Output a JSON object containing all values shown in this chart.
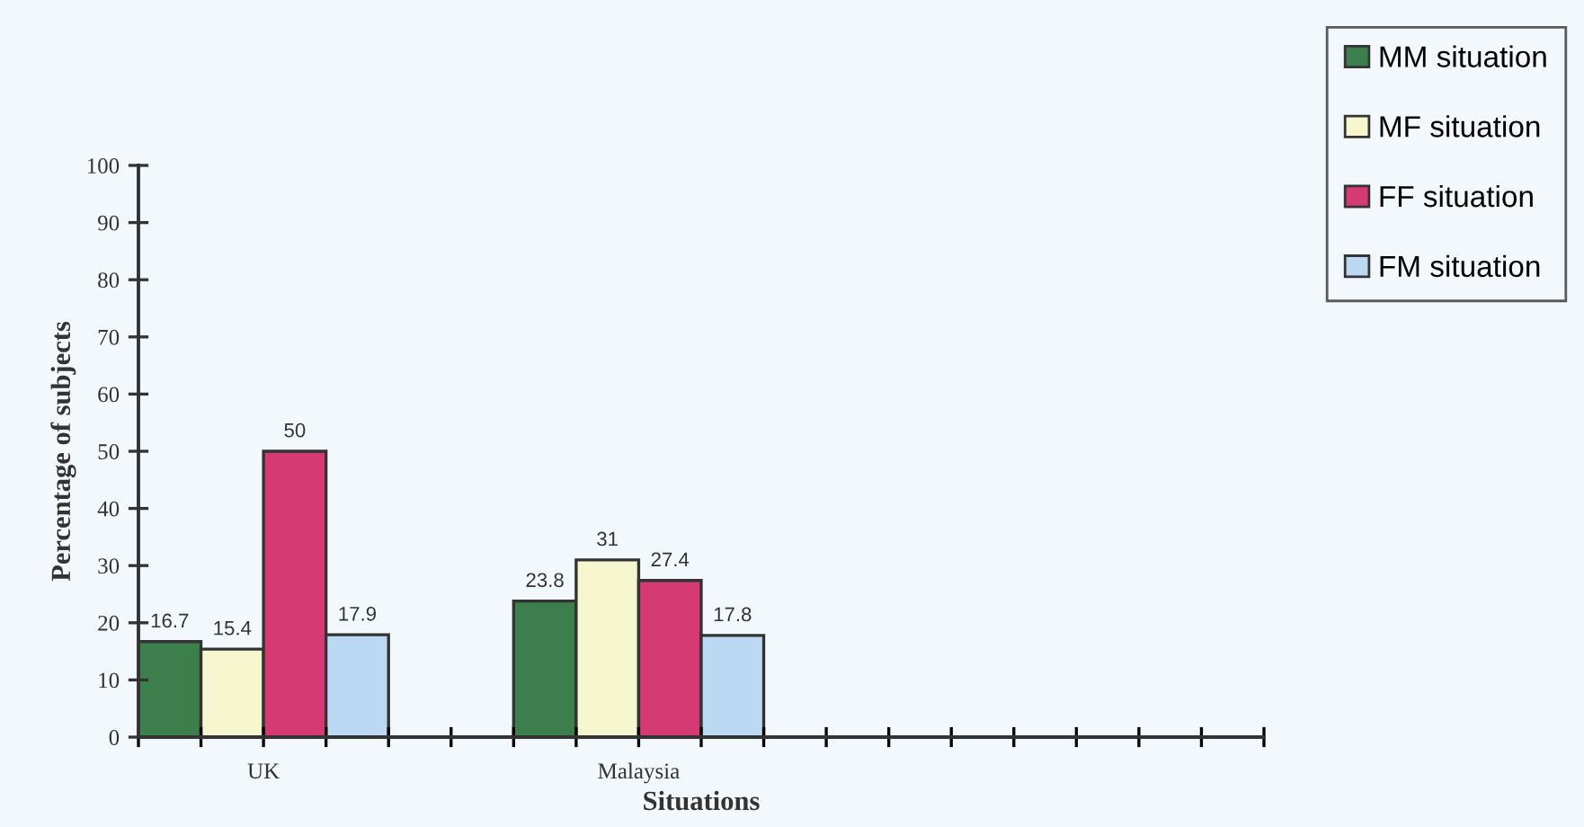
{
  "chart_data": {
    "type": "bar",
    "xlabel": "Situations",
    "ylabel": "Percentage of subjects",
    "categories": [
      "UK",
      "Malaysia"
    ],
    "series": [
      {
        "name": "MM situation",
        "color": "#3d7f4c",
        "values": [
          16.7,
          23.8
        ]
      },
      {
        "name": "MF situation",
        "color": "#f6f6cf",
        "values": [
          15.4,
          31
        ]
      },
      {
        "name": "FF situation",
        "color": "#d63a72",
        "values": [
          50,
          27.4
        ]
      },
      {
        "name": "FM situation",
        "color": "#bcd8f2",
        "values": [
          17.9,
          17.8
        ]
      }
    ],
    "ylim": [
      0,
      100
    ],
    "yticks": [
      0,
      10,
      20,
      30,
      40,
      50,
      60,
      70,
      80,
      90,
      100
    ],
    "data_labels": true,
    "grid": false,
    "legend": "top right"
  }
}
